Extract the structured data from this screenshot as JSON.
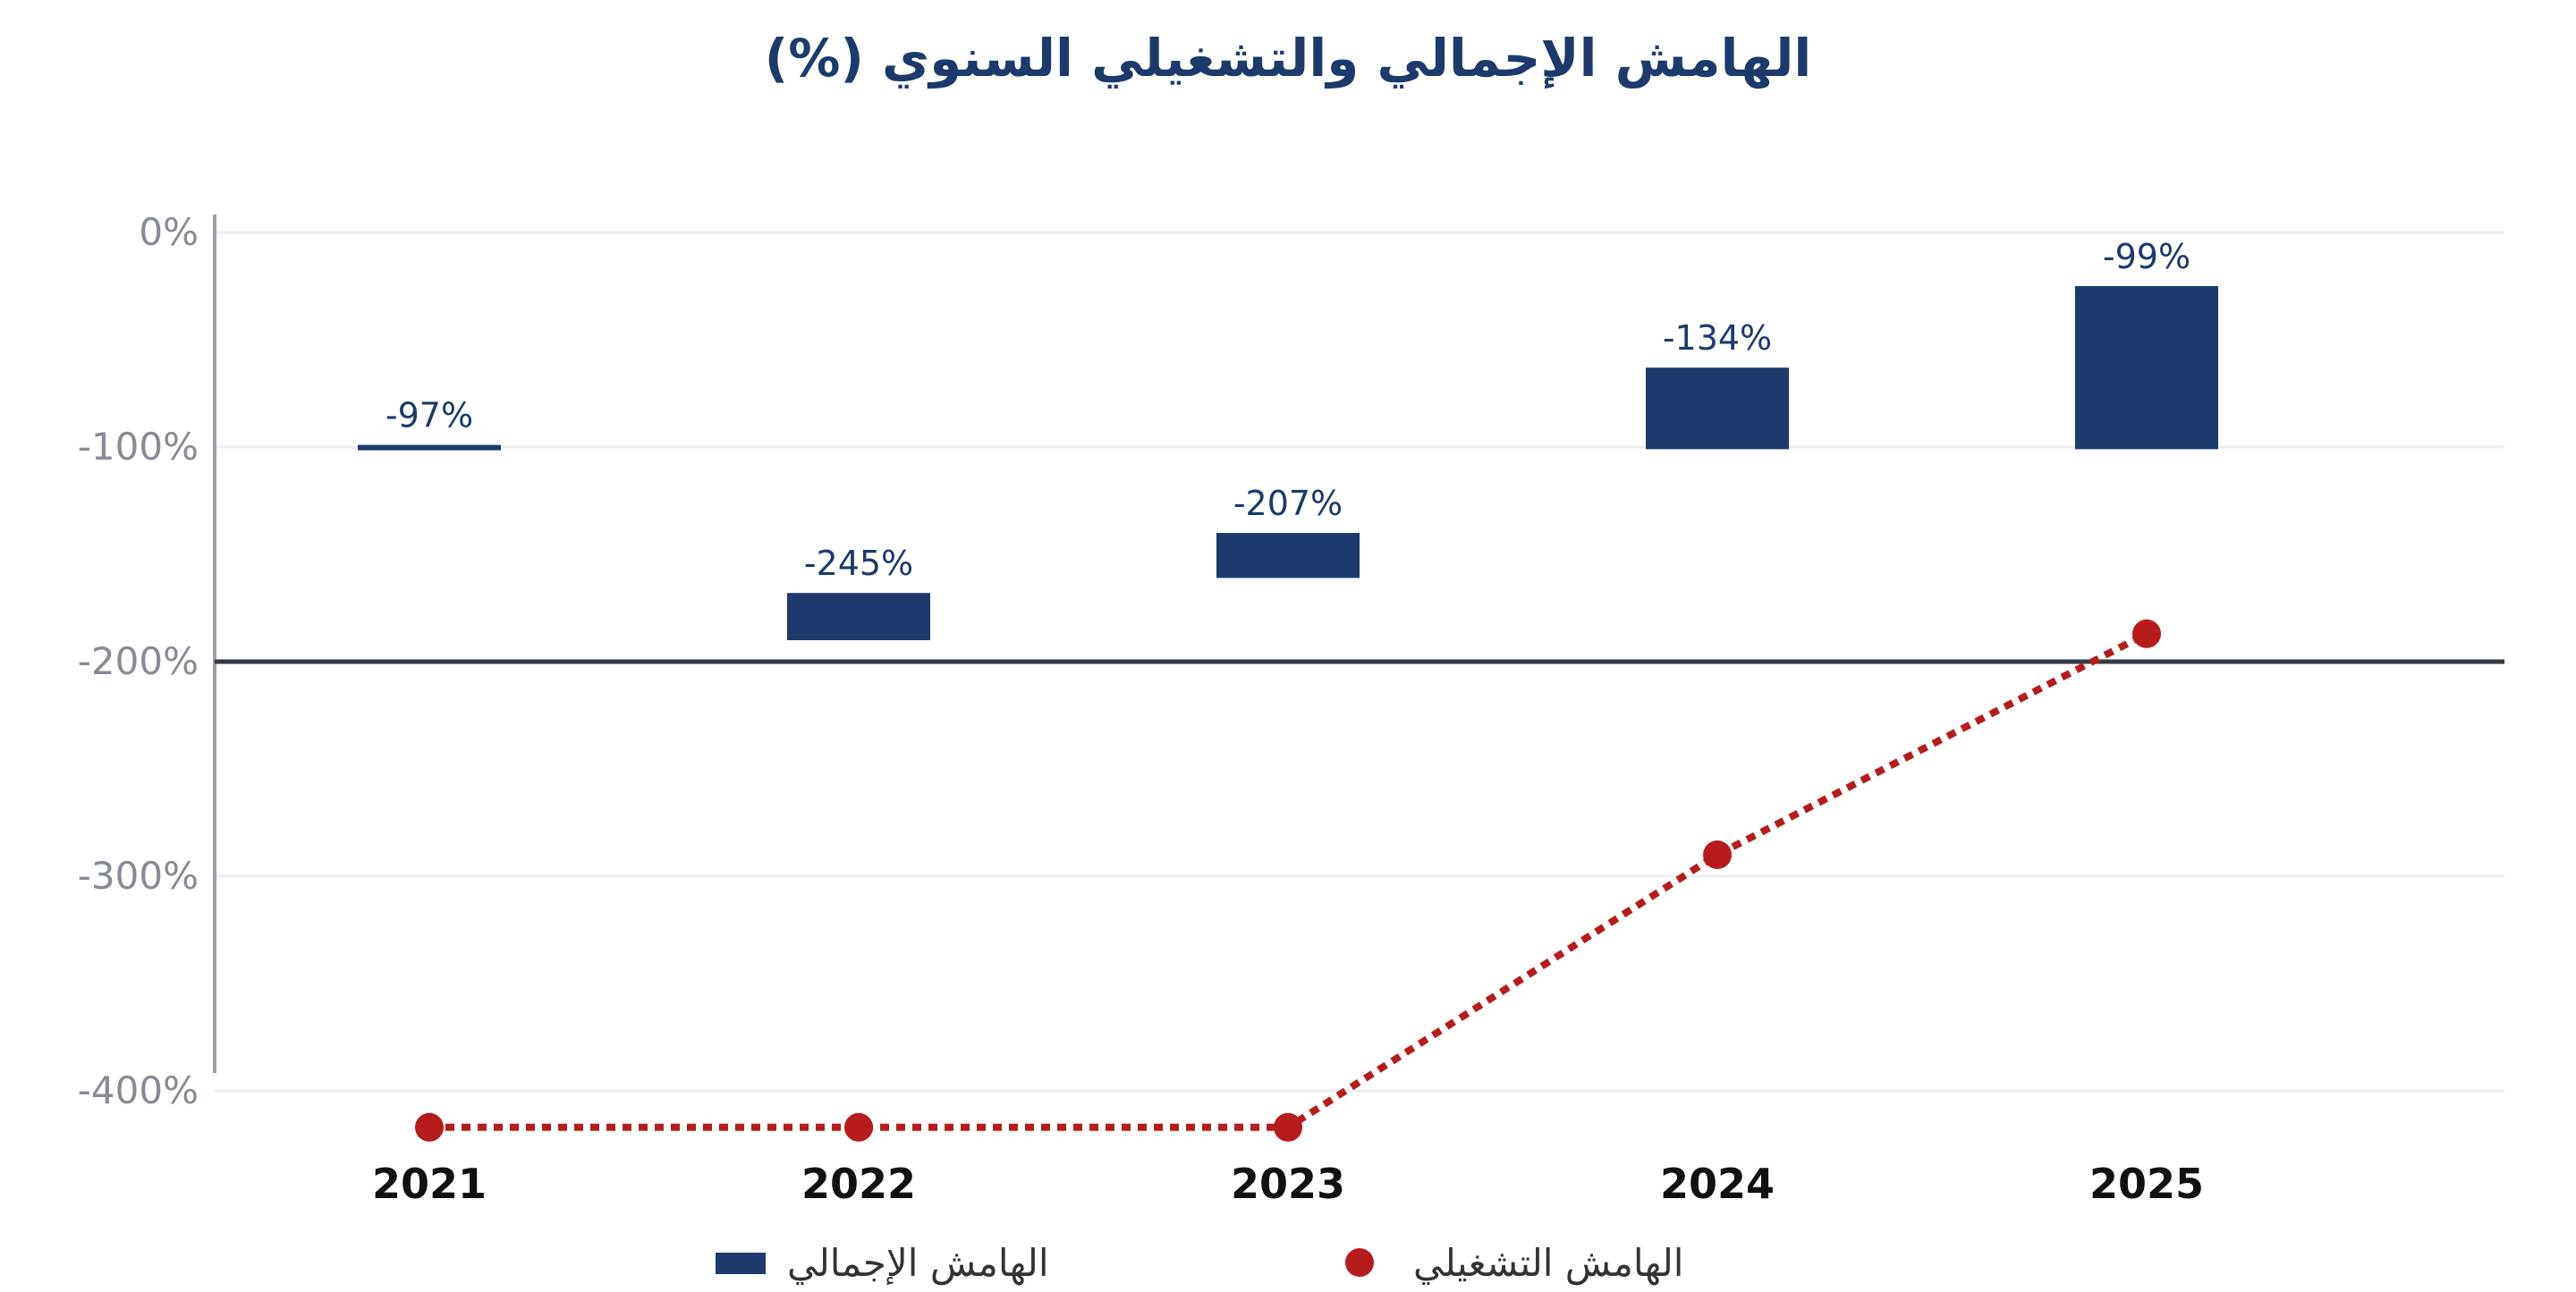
{
  "chart_data": {
    "type": "bar",
    "title": "الهامش الإجمالي والتشغيلي السنوي (%)",
    "xlabel": "",
    "ylabel": "",
    "categories": [
      "2021",
      "2022",
      "2023",
      "2024",
      "2025"
    ],
    "ylim": [
      -400,
      0
    ],
    "yticks": [
      0,
      -100,
      -200,
      -300,
      -400
    ],
    "ytick_labels": [
      "0%",
      "-100%",
      "-200%",
      "-300%",
      "-400%"
    ],
    "grid": true,
    "axis_break": true,
    "reference_line": -200,
    "legend_position": "bottom",
    "series": [
      {
        "name": "الهامش الإجمالي",
        "type": "bar",
        "color": "#1c3a6b",
        "values": [
          -97,
          -245,
          -207,
          -134,
          -99
        ],
        "data_labels": [
          "-97%",
          "-245%",
          "-207%",
          "-134%",
          "-99%"
        ],
        "display_positions": [
          -101,
          -190,
          -161,
          -101,
          -101
        ],
        "display_baseline": [
          -99,
          -168,
          -140,
          -63,
          -25
        ]
      },
      {
        "name": "الهامش التشغيلي",
        "type": "line",
        "color": "#b71c1c",
        "line_style": "dotted",
        "display_positions": [
          -417,
          -417,
          -417,
          -290,
          -187
        ]
      }
    ]
  }
}
